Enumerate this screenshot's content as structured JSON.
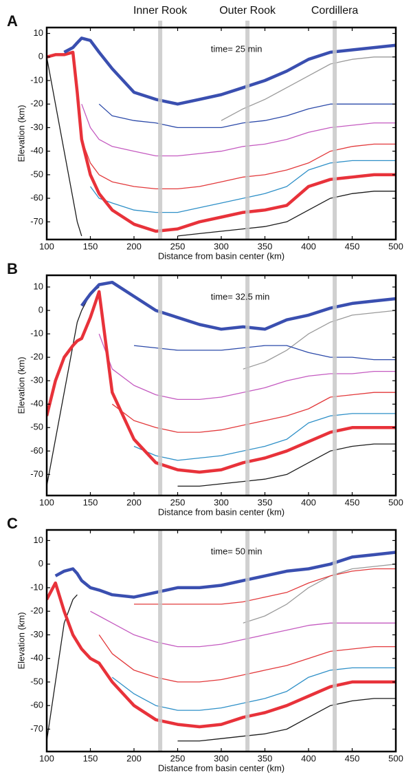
{
  "chart_data": [
    {
      "type": "line",
      "panel_label": "A",
      "annotation": "time= 25 min",
      "xlabel": "Distance from basin center (km)",
      "ylabel": "Elevation (km)",
      "xlim": [
        100,
        500
      ],
      "ylim": [
        -77.5,
        12.5
      ],
      "xticks": [
        100,
        150,
        200,
        250,
        300,
        350,
        400,
        450,
        500
      ],
      "yticks": [
        -70,
        -60,
        -50,
        -40,
        -30,
        -20,
        -10,
        0,
        10
      ],
      "vlines": [
        230,
        330,
        430
      ],
      "vline_labels": [
        "Inner Rook",
        "Outer Rook",
        "Cordillera"
      ],
      "vline_color": "#c8c8c8",
      "x": [
        100,
        110,
        120,
        130,
        135,
        140,
        150,
        160,
        175,
        200,
        225,
        250,
        275,
        300,
        325,
        350,
        375,
        400,
        425,
        450,
        475,
        500
      ],
      "series": [
        {
          "color": "#9a9a9a",
          "thick": false,
          "values": [
            null,
            null,
            null,
            null,
            null,
            null,
            null,
            null,
            null,
            null,
            null,
            null,
            null,
            -27,
            -22,
            -18,
            -13,
            -8,
            -3,
            -1,
            0,
            0
          ]
        },
        {
          "color": "#2a48a8",
          "thick": false,
          "values": [
            null,
            null,
            null,
            null,
            null,
            null,
            null,
            -20,
            -25,
            -27,
            -28,
            -30,
            -30,
            -30,
            -28,
            -27,
            -25,
            -22,
            -20,
            -20,
            -20,
            -20
          ]
        },
        {
          "color": "#c45ac0",
          "thick": false,
          "values": [
            null,
            null,
            null,
            null,
            null,
            -20,
            -30,
            -35,
            -38,
            -40,
            -42,
            -42,
            -41,
            -40,
            -38,
            -37,
            -35,
            -32,
            -30,
            -29,
            -28,
            -28
          ]
        },
        {
          "color": "#e2383a",
          "thick": false,
          "values": [
            null,
            null,
            null,
            null,
            null,
            -35,
            -45,
            -50,
            -53,
            -55,
            -56,
            -56,
            -55,
            -53,
            -51,
            -50,
            -48,
            -45,
            -40,
            -38,
            -37,
            -37
          ]
        },
        {
          "color": "#2d8fc7",
          "thick": false,
          "values": [
            null,
            null,
            null,
            null,
            null,
            null,
            -55,
            -60,
            -62,
            -65,
            -66,
            -66,
            -64,
            -62,
            -60,
            -58,
            -55,
            -48,
            -45,
            -44,
            -44,
            -44
          ]
        },
        {
          "color": "#1a1a1a",
          "thick": false,
          "values": [
            null,
            null,
            null,
            null,
            null,
            null,
            null,
            null,
            null,
            null,
            null,
            -76,
            -75,
            -74,
            -73,
            -72,
            -70,
            -65,
            -60,
            -58,
            -57,
            -57
          ]
        },
        {
          "color": "#1a1a1a",
          "thick": false,
          "values": [
            0,
            -20,
            -40,
            -60,
            -70,
            -76,
            null,
            null,
            null,
            null,
            null,
            null,
            null,
            null,
            null,
            null,
            null,
            null,
            null,
            null,
            null,
            null
          ]
        },
        {
          "color": "#e8323a",
          "thick": true,
          "values": [
            0,
            1,
            1,
            2,
            -15,
            -35,
            -50,
            -58,
            -65,
            -71,
            -74,
            -73,
            -70,
            -68,
            -66,
            -65,
            -63,
            -55,
            -52,
            -51,
            -50,
            -50
          ]
        },
        {
          "color": "#3a4fb0",
          "thick": true,
          "values": [
            null,
            null,
            2,
            4,
            6,
            8,
            7,
            2,
            -5,
            -15,
            -18,
            -20,
            -18,
            -16,
            -13,
            -10,
            -6,
            -1,
            2,
            3,
            4,
            5
          ]
        }
      ]
    },
    {
      "type": "line",
      "panel_label": "B",
      "annotation": "time= 32.5 min",
      "xlabel": "Distance from basin center (km)",
      "ylabel": "Elevation (km)",
      "xlim": [
        100,
        500
      ],
      "ylim": [
        -79,
        15
      ],
      "xticks": [
        100,
        150,
        200,
        250,
        300,
        350,
        400,
        450,
        500
      ],
      "yticks": [
        -70,
        -60,
        -50,
        -40,
        -30,
        -20,
        -10,
        0,
        10
      ],
      "vlines": [
        230,
        330,
        430
      ],
      "vline_color": "#c8c8c8",
      "x": [
        100,
        110,
        120,
        130,
        135,
        140,
        150,
        160,
        175,
        200,
        225,
        250,
        275,
        300,
        325,
        350,
        375,
        400,
        425,
        450,
        475,
        500
      ],
      "series": [
        {
          "color": "#9a9a9a",
          "thick": false,
          "values": [
            null,
            null,
            null,
            null,
            null,
            null,
            null,
            null,
            null,
            null,
            null,
            null,
            null,
            null,
            -25,
            -22,
            -17,
            -10,
            -5,
            -2,
            -1,
            0
          ]
        },
        {
          "color": "#2a48a8",
          "thick": false,
          "values": [
            null,
            null,
            null,
            null,
            null,
            null,
            null,
            null,
            null,
            -15,
            -16,
            -17,
            -17,
            -17,
            -16,
            -15,
            -15,
            -18,
            -20,
            -20,
            -21,
            -21
          ]
        },
        {
          "color": "#c45ac0",
          "thick": false,
          "values": [
            null,
            null,
            null,
            null,
            null,
            null,
            null,
            -10,
            -25,
            -32,
            -36,
            -38,
            -38,
            -37,
            -35,
            -33,
            -30,
            -28,
            -27,
            -27,
            -26,
            -26
          ]
        },
        {
          "color": "#e2383a",
          "thick": false,
          "values": [
            null,
            null,
            null,
            null,
            null,
            null,
            null,
            null,
            -40,
            -47,
            -50,
            -52,
            -52,
            -51,
            -49,
            -47,
            -45,
            -42,
            -37,
            -36,
            -35,
            -35
          ]
        },
        {
          "color": "#2d8fc7",
          "thick": false,
          "values": [
            null,
            null,
            null,
            null,
            null,
            null,
            null,
            null,
            null,
            -58,
            -62,
            -64,
            -63,
            -62,
            -60,
            -58,
            -55,
            -48,
            -45,
            -44,
            -44,
            -44
          ]
        },
        {
          "color": "#1a1a1a",
          "thick": false,
          "values": [
            null,
            null,
            null,
            null,
            null,
            null,
            null,
            null,
            null,
            null,
            null,
            -75,
            -75,
            -74,
            -73,
            -72,
            -70,
            -65,
            -60,
            -58,
            -57,
            -57
          ]
        },
        {
          "color": "#1a1a1a",
          "thick": false,
          "values": [
            -75,
            -55,
            -35,
            -15,
            -5,
            0,
            7,
            10,
            null,
            null,
            null,
            null,
            null,
            null,
            null,
            null,
            null,
            null,
            null,
            null,
            null,
            null
          ]
        },
        {
          "color": "#e8323a",
          "thick": true,
          "values": [
            -45,
            -30,
            -20,
            -15,
            -13,
            -12,
            -3,
            8,
            -35,
            -55,
            -65,
            -68,
            -69,
            -68,
            -65,
            -63,
            -60,
            -56,
            -52,
            -50,
            -50,
            -50
          ]
        },
        {
          "color": "#3a4fb0",
          "thick": true,
          "values": [
            null,
            null,
            null,
            null,
            null,
            2,
            7,
            11,
            12,
            6,
            0,
            -3,
            -6,
            -8,
            -7,
            -8,
            -4,
            -2,
            1,
            3,
            4,
            5
          ]
        }
      ]
    },
    {
      "type": "line",
      "panel_label": "C",
      "annotation": "time= 50 min",
      "xlabel": "Distance from basin center (km)",
      "ylabel": "Elevation (km)",
      "xlim": [
        100,
        500
      ],
      "ylim": [
        -79.5,
        14.5
      ],
      "xticks": [
        100,
        150,
        200,
        250,
        300,
        350,
        400,
        450,
        500
      ],
      "yticks": [
        -70,
        -60,
        -50,
        -40,
        -30,
        -20,
        -10,
        0,
        10
      ],
      "vlines": [
        230,
        330,
        430
      ],
      "vline_color": "#c8c8c8",
      "x": [
        100,
        110,
        120,
        130,
        135,
        140,
        150,
        160,
        175,
        200,
        225,
        250,
        275,
        300,
        325,
        350,
        375,
        400,
        425,
        450,
        475,
        500
      ],
      "series": [
        {
          "color": "#9a9a9a",
          "thick": false,
          "values": [
            null,
            null,
            null,
            null,
            null,
            null,
            null,
            null,
            null,
            null,
            null,
            null,
            null,
            null,
            -25,
            -22,
            -17,
            -10,
            -5,
            -2,
            -1,
            0
          ]
        },
        {
          "color": "#e2383a",
          "thick": false,
          "values": [
            null,
            null,
            null,
            null,
            null,
            null,
            null,
            null,
            null,
            -17,
            -17,
            -17,
            -17,
            -17,
            -16,
            -14,
            -12,
            -8,
            -5,
            -3,
            -2,
            -2
          ]
        },
        {
          "color": "#c45ac0",
          "thick": false,
          "values": [
            null,
            null,
            null,
            null,
            null,
            null,
            -20,
            -22,
            -25,
            -30,
            -33,
            -35,
            -35,
            -34,
            -32,
            -30,
            -28,
            -26,
            -25,
            -25,
            -25,
            -25
          ]
        },
        {
          "color": "#e2383a",
          "thick": false,
          "values": [
            null,
            null,
            null,
            null,
            null,
            null,
            null,
            -30,
            -38,
            -45,
            -48,
            -50,
            -50,
            -49,
            -47,
            -45,
            -43,
            -40,
            -37,
            -36,
            -35,
            -35
          ]
        },
        {
          "color": "#2d8fc7",
          "thick": false,
          "values": [
            null,
            null,
            null,
            null,
            null,
            null,
            null,
            null,
            -48,
            -55,
            -60,
            -62,
            -62,
            -61,
            -59,
            -57,
            -54,
            -48,
            -45,
            -44,
            -44,
            -44
          ]
        },
        {
          "color": "#1a1a1a",
          "thick": false,
          "values": [
            null,
            null,
            null,
            null,
            null,
            null,
            null,
            null,
            null,
            null,
            null,
            -75,
            -75,
            -74,
            -73,
            -72,
            -70,
            -65,
            -60,
            -58,
            -57,
            -57
          ]
        },
        {
          "color": "#1a1a1a",
          "thick": false,
          "values": [
            -75,
            -50,
            -25,
            -15,
            -13,
            null,
            null,
            null,
            null,
            null,
            null,
            null,
            null,
            null,
            null,
            null,
            null,
            null,
            null,
            null,
            null,
            null
          ]
        },
        {
          "color": "#e8323a",
          "thick": true,
          "values": [
            -15,
            -8,
            -20,
            -30,
            -33,
            -36,
            -40,
            -42,
            -50,
            -60,
            -66,
            -68,
            -69,
            -68,
            -65,
            -63,
            -60,
            -56,
            -52,
            -50,
            -50,
            -50
          ]
        },
        {
          "color": "#3a4fb0",
          "thick": true,
          "values": [
            null,
            -5,
            -3,
            -2,
            -4,
            -7,
            -10,
            -11,
            -13,
            -14,
            -12,
            -10,
            -10,
            -9,
            -7,
            -5,
            -3,
            -2,
            0,
            3,
            4,
            5
          ]
        }
      ]
    }
  ]
}
